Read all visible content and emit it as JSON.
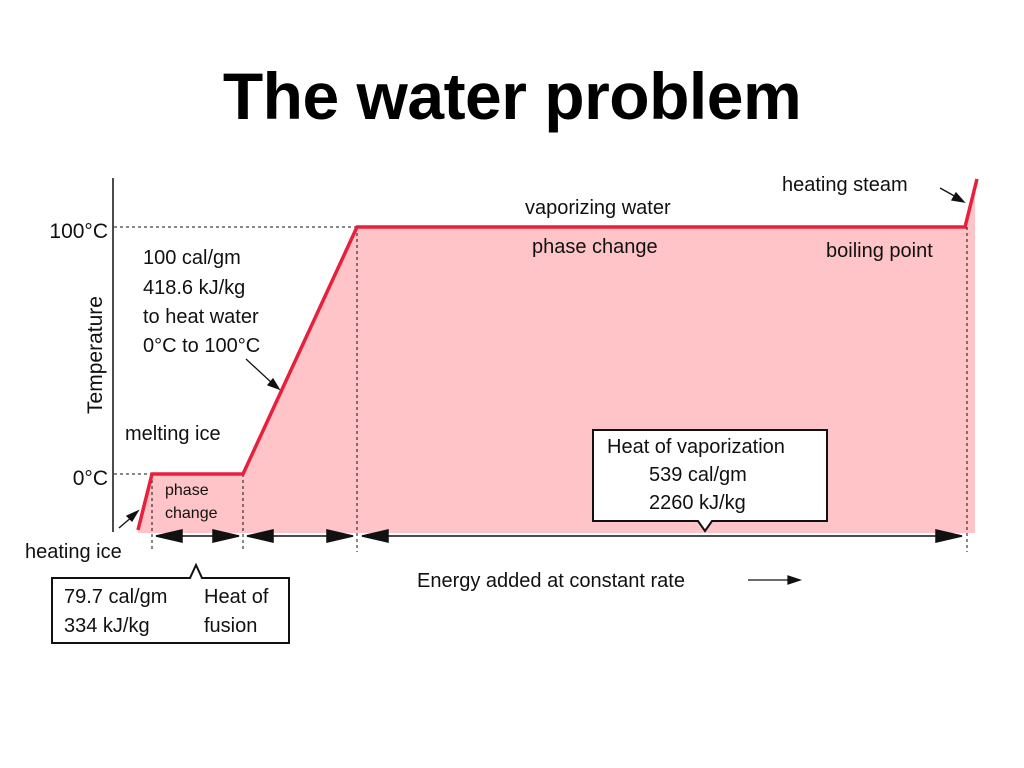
{
  "slide": {
    "title": "The water problem"
  },
  "diagram": {
    "axis": {
      "y_label": "Temperature",
      "tick_100": "100°C",
      "tick_0": "0°C"
    },
    "colors": {
      "curve": "#e8203c",
      "fill": "#ffc4c7",
      "text": "#111111"
    },
    "labels": {
      "heating_ice": "heating ice",
      "melting_ice": "melting ice",
      "phase_change_ice": [
        "phase",
        "change"
      ],
      "heat_water": [
        "100 cal/gm",
        "418.6 kJ/kg",
        "to heat water",
        "0°C to 100°C"
      ],
      "vaporizing_water": "vaporizing water",
      "phase_change_water": "phase change",
      "boiling_point": "boiling point",
      "heating_steam": "heating steam",
      "energy_axis": "Energy added at constant rate"
    },
    "fusion_box": {
      "col1": [
        "79.7 cal/gm",
        "334 kJ/kg"
      ],
      "col2": [
        "Heat of",
        "fusion"
      ]
    },
    "vaporization_box": [
      "Heat of vaporization",
      "539 cal/gm",
      "2260 kJ/kg"
    ]
  }
}
